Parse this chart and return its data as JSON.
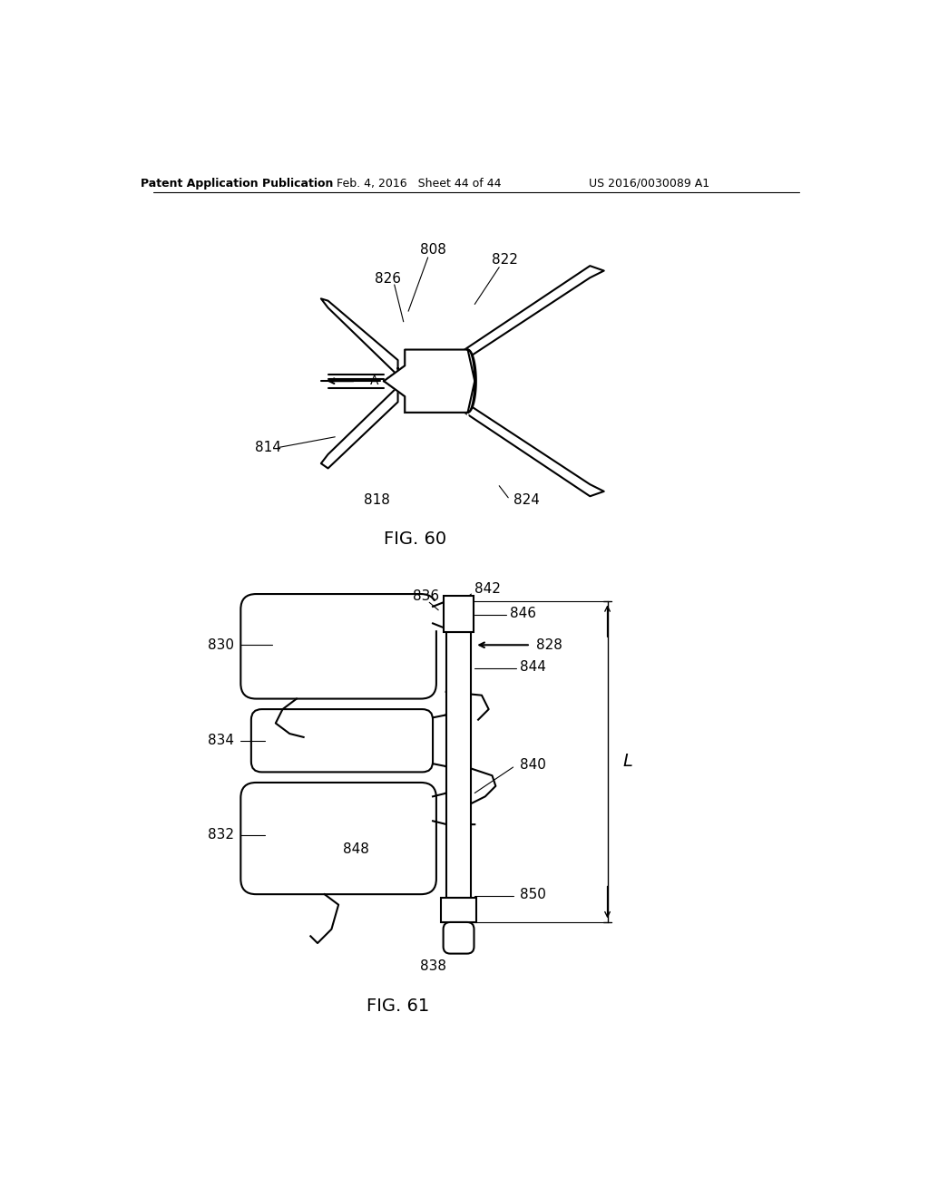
{
  "bg_color": "#ffffff",
  "header_left": "Patent Application Publication",
  "header_mid": "Feb. 4, 2016   Sheet 44 of 44",
  "header_right": "US 2016/0030089 A1",
  "fig60_label": "FIG. 60",
  "fig61_label": "FIG. 61",
  "line_color": "#000000",
  "text_color": "#000000",
  "font_size_header": 9,
  "font_size_label": 14,
  "font_size_ref": 11
}
